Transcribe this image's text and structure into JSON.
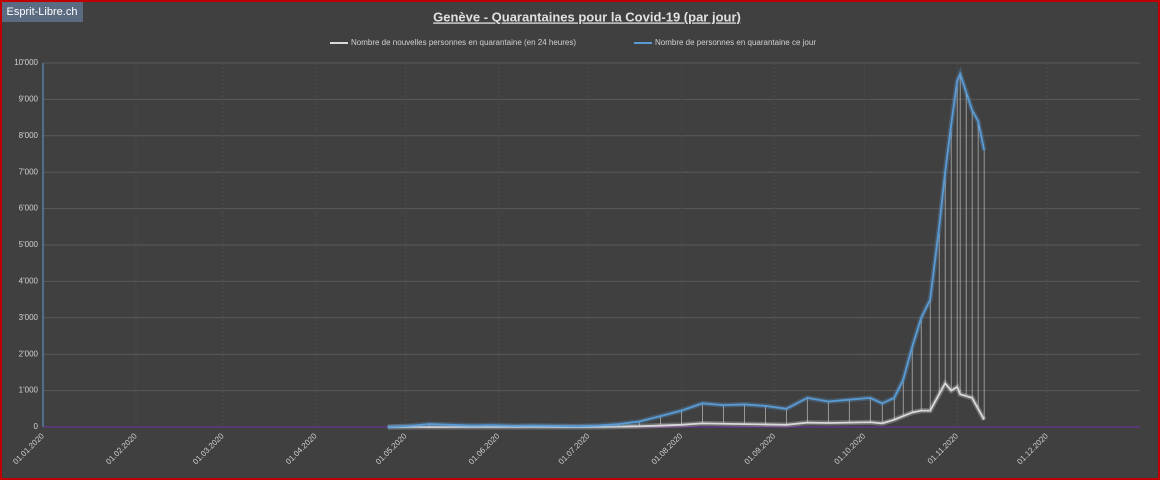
{
  "watermark": "Esprit-Libre.ch",
  "chart_data": {
    "type": "line",
    "title": "Genève - Quarantaines pour la Covid-19 (par jour)",
    "x": [
      "2020-04-25",
      "2020-05-02",
      "2020-05-09",
      "2020-05-16",
      "2020-05-23",
      "2020-05-30",
      "2020-06-06",
      "2020-06-13",
      "2020-06-20",
      "2020-06-27",
      "2020-07-04",
      "2020-07-11",
      "2020-07-18",
      "2020-07-25",
      "2020-08-01",
      "2020-08-08",
      "2020-08-15",
      "2020-08-22",
      "2020-08-29",
      "2020-09-05",
      "2020-09-12",
      "2020-09-19",
      "2020-09-26",
      "2020-10-03",
      "2020-10-07",
      "2020-10-11",
      "2020-10-14",
      "2020-10-17",
      "2020-10-20",
      "2020-10-23",
      "2020-10-26",
      "2020-10-28",
      "2020-10-30",
      "2020-11-01",
      "2020-11-02",
      "2020-11-04",
      "2020-11-06",
      "2020-11-08",
      "2020-11-10"
    ],
    "series": [
      {
        "name": "Nombre de nouvelles personnes en quarantaine (en 24 heures)",
        "color": "#d9d9d9",
        "values": [
          0,
          0,
          0,
          0,
          0,
          0,
          0,
          0,
          0,
          0,
          0,
          10,
          20,
          40,
          60,
          100,
          90,
          80,
          70,
          60,
          120,
          110,
          120,
          130,
          100,
          200,
          300,
          400,
          450,
          450,
          900,
          1200,
          1000,
          1100,
          900,
          850,
          800,
          500,
          200
        ]
      },
      {
        "name": "Nombre de personnes en quarantaine ce jour",
        "color": "#5b9bd5",
        "values": [
          0,
          30,
          80,
          60,
          40,
          50,
          30,
          40,
          30,
          20,
          40,
          80,
          150,
          300,
          450,
          650,
          600,
          620,
          580,
          500,
          800,
          700,
          750,
          800,
          650,
          800,
          1300,
          2200,
          3000,
          3500,
          5500,
          7000,
          8300,
          9500,
          9700,
          9200,
          8700,
          8400,
          7600
        ]
      }
    ],
    "xlim": [
      "2020-01-01",
      "2021-01-01"
    ],
    "xticks": [
      {
        "value": "2020-01-01",
        "label": "01.01.2020"
      },
      {
        "value": "2020-02-01",
        "label": "01.02.2020"
      },
      {
        "value": "2020-03-01",
        "label": "01.03.2020"
      },
      {
        "value": "2020-04-01",
        "label": "01.04.2020"
      },
      {
        "value": "2020-05-01",
        "label": "01.05.2020"
      },
      {
        "value": "2020-06-01",
        "label": "01.06.2020"
      },
      {
        "value": "2020-07-01",
        "label": "01.07.2020"
      },
      {
        "value": "2020-08-01",
        "label": "01.08.2020"
      },
      {
        "value": "2020-09-01",
        "label": "01.09.2020"
      },
      {
        "value": "2020-10-01",
        "label": "01.10.2020"
      },
      {
        "value": "2020-11-01",
        "label": "01.11.2020"
      },
      {
        "value": "2020-12-01",
        "label": "01.12.2020"
      }
    ],
    "ylim": [
      0,
      10000
    ],
    "yticks": [
      0,
      {
        "value": 1000,
        "label": "1'000"
      },
      {
        "value": 2000,
        "label": "2'000"
      },
      {
        "value": 3000,
        "label": "3'000"
      },
      {
        "value": 4000,
        "label": "4'000"
      },
      {
        "value": 5000,
        "label": "5'000"
      },
      {
        "value": 6000,
        "label": "6'000"
      },
      {
        "value": 7000,
        "label": "7'000"
      },
      {
        "value": 8000,
        "label": "8'000"
      },
      {
        "value": 9000,
        "label": "9'000"
      },
      {
        "value": 10000,
        "label": "10'000"
      }
    ],
    "grid": true
  }
}
